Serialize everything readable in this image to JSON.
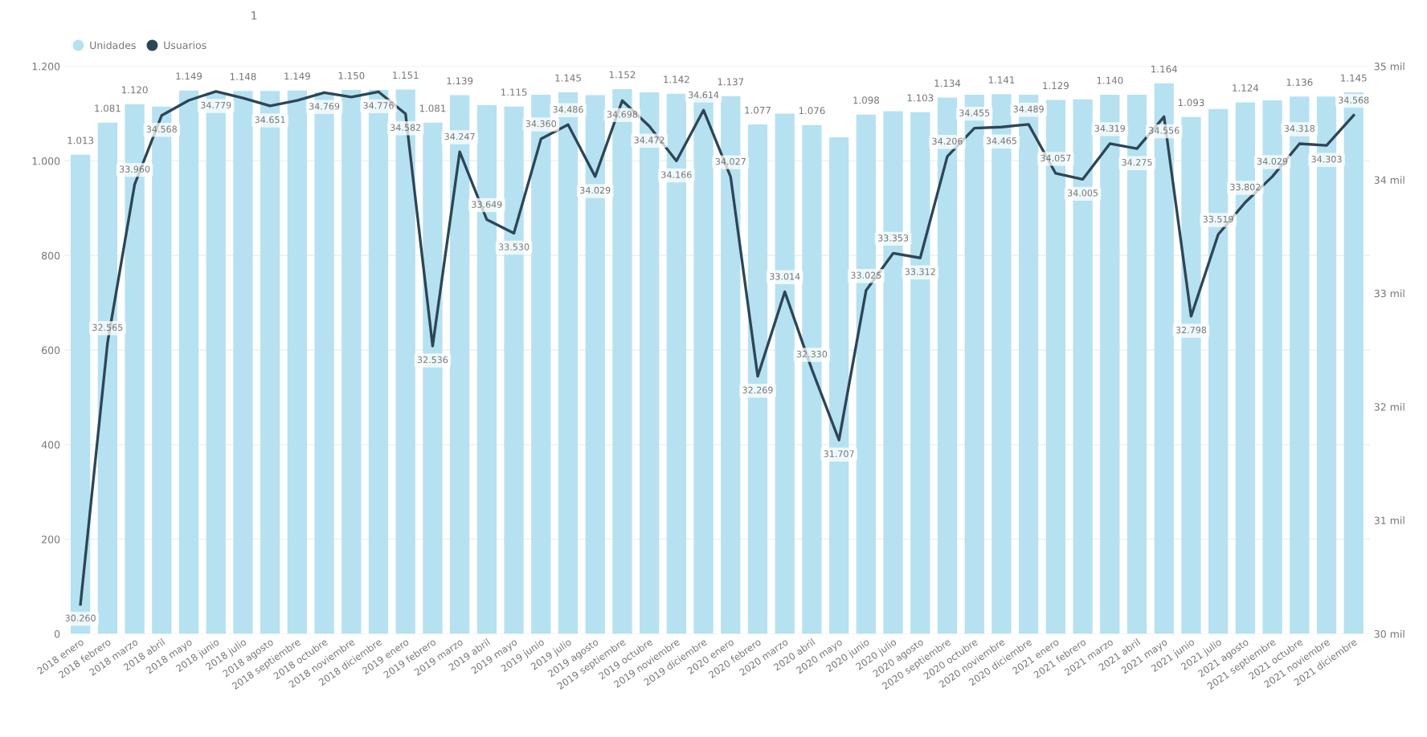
{
  "chart_data": {
    "type": "bar",
    "title": "1",
    "categories": [
      "2018 enero",
      "2018 febrero",
      "2018 marzo",
      "2018 abril",
      "2018 mayo",
      "2018 junio",
      "2018 julio",
      "2018 agosto",
      "2018 septiembre",
      "2018 octubre",
      "2018 noviembre",
      "2018 diciembre",
      "2019 enero",
      "2019 febrero",
      "2019 marzo",
      "2019 abril",
      "2019 mayo",
      "2019 junio",
      "2019 julio",
      "2019 agosto",
      "2019 septiembre",
      "2019 octubre",
      "2019 noviembre",
      "2019 diciembre",
      "2020 enero",
      "2020 febrero",
      "2020 marzo",
      "2020 abril",
      "2020 mayo",
      "2020 junio",
      "2020 julio",
      "2020 agosto",
      "2020 septiembre",
      "2020 octubre",
      "2020 noviembre",
      "2020 diciembre",
      "2021 enero",
      "2021 febrero",
      "2021 marzo",
      "2021 abril",
      "2021 mayo",
      "2021 junio",
      "2021 julio",
      "2021 agosto",
      "2021 septiembre",
      "2021 octubre",
      "2021 noviembre",
      "2021 diciembre"
    ],
    "series": [
      {
        "name": "Unidades",
        "color": "#b6e1f0",
        "values": [
          1013,
          1081,
          1120,
          1115,
          1149,
          1145,
          1148,
          1148,
          1149,
          1145,
          1150,
          1150,
          1151,
          1081,
          1139,
          1118,
          1115,
          1140,
          1145,
          1139,
          1152,
          1145,
          1142,
          1140,
          1137,
          1077,
          1100,
          1076,
          1050,
          1098,
          1105,
          1103,
          1134,
          1140,
          1141,
          1140,
          1129,
          1130,
          1140,
          1140,
          1164,
          1093,
          1110,
          1124,
          1128,
          1136,
          1136,
          1145
        ],
        "value_labels": [
          "1.013",
          "1.081",
          "1.120",
          null,
          "1.149",
          null,
          "1.148",
          null,
          "1.149",
          null,
          "1.150",
          null,
          "1.151",
          "1.081",
          "1.139",
          null,
          "1.115",
          null,
          "1.145",
          null,
          "1.152",
          null,
          "1.142",
          null,
          "1.137",
          "1.077",
          null,
          "1.076",
          null,
          "1.098",
          null,
          "1.103",
          "1.134",
          null,
          "1.141",
          null,
          "1.129",
          null,
          "1.140",
          null,
          "1.164",
          "1.093",
          null,
          "1.124",
          null,
          "1.136",
          null,
          "1.145"
        ]
      },
      {
        "name": "Usuarios",
        "type": "line",
        "axis": "y2",
        "color": "#2d4656",
        "values": [
          30.26,
          32.565,
          33.96,
          34.568,
          34.7,
          34.779,
          34.72,
          34.651,
          34.7,
          34.769,
          34.73,
          34.776,
          34.582,
          32.536,
          34.247,
          33.649,
          33.53,
          34.36,
          34.486,
          34.029,
          34.698,
          34.472,
          34.166,
          34.614,
          34.027,
          32.269,
          33.014,
          32.33,
          31.707,
          33.025,
          33.353,
          33.312,
          34.206,
          34.455,
          34.465,
          34.489,
          34.057,
          34.005,
          34.319,
          34.275,
          34.556,
          32.798,
          33.519,
          33.802,
          34.029,
          34.318,
          34.303,
          34.568
        ],
        "value_labels": [
          "30.260",
          "32.565",
          "33.960",
          "34.568",
          null,
          "34.779",
          null,
          "34.651",
          null,
          "34.769",
          null,
          "34.776",
          "34.582",
          "32.536",
          "34.247",
          "33.649",
          "33.530",
          "34.360",
          "34.486",
          "34.029",
          "34.698",
          "34.472",
          "34.166",
          "34.614",
          "34.027",
          "32.269",
          "33.014",
          "32.330",
          "31.707",
          "33.025",
          "33.353",
          "33.312",
          "34.206",
          "34.455",
          "34.465",
          "34.489",
          "34.057",
          "34.005",
          "34.319",
          "34.275",
          "34.556",
          "32.798",
          "33.519",
          "33.802",
          "34.029",
          "34.318",
          "34.303",
          "34.568"
        ]
      }
    ],
    "ylim": [
      0,
      1200
    ],
    "yticks": [
      0,
      200,
      400,
      600,
      800,
      {
        "value": 1000,
        "label": "1.000"
      },
      {
        "value": 1200,
        "label": "1.200"
      }
    ],
    "y2lim": [
      30,
      35
    ],
    "y2ticks": [
      {
        "value": 30,
        "label": "30 mil"
      },
      {
        "value": 31,
        "label": "31 mil"
      },
      {
        "value": 32,
        "label": "32 mil"
      },
      {
        "value": 33,
        "label": "33 mil"
      },
      {
        "value": 34,
        "label": "34 mil"
      },
      {
        "value": 35,
        "label": "35 mil"
      }
    ],
    "grid": "y",
    "legend": "top left",
    "marker": "none",
    "line_style": "solid"
  }
}
